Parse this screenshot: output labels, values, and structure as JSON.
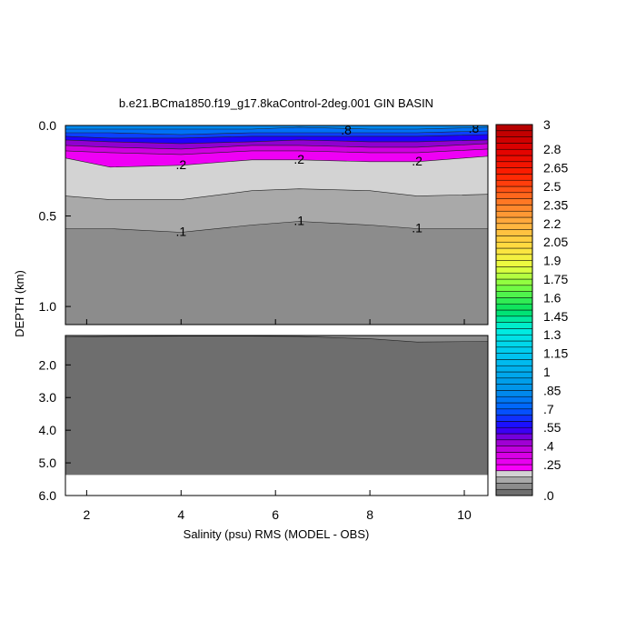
{
  "chart_data": {
    "type": "contour",
    "title": "b.e21.BCma1850.f19_g17.8kaControl-2deg.001 GIN BASIN",
    "xlabel": "Salinity (psu) RMS (MODEL - OBS)",
    "ylabel": "DEPTH (km)",
    "xlim": [
      1.55,
      10.5
    ],
    "xticks": [
      2,
      4,
      6,
      8,
      10
    ],
    "panels": [
      {
        "ylim": [
          0,
          1.1
        ],
        "yticks": [
          {
            "value": 0,
            "label": "0.0"
          },
          {
            "value": 0.5,
            "label": "0.5"
          },
          {
            "value": 1,
            "label": "1.0"
          }
        ]
      },
      {
        "ylim": [
          1.1,
          6
        ],
        "yticks": [
          {
            "value": 2,
            "label": "2.0"
          },
          {
            "value": 3,
            "label": "3.0"
          },
          {
            "value": 4,
            "label": "4.0"
          },
          {
            "value": 5,
            "label": "5.0"
          },
          {
            "value": 6,
            "label": "6.0"
          }
        ]
      }
    ],
    "bottom_depth": 5.37,
    "x": [
      1.55,
      2.5,
      4,
      5.5,
      6.5,
      8,
      9,
      10.5
    ],
    "contours": [
      {
        "level": 0.05,
        "depth": [
          1.15,
          1.13,
          1.12,
          1.12,
          1.13,
          1.2,
          1.3,
          1.28
        ]
      },
      {
        "level": 0.1,
        "depth": [
          0.57,
          0.57,
          0.59,
          0.55,
          0.53,
          0.55,
          0.57,
          0.57
        ]
      },
      {
        "level": 0.15,
        "depth": [
          0.39,
          0.41,
          0.41,
          0.36,
          0.35,
          0.36,
          0.39,
          0.38
        ]
      },
      {
        "level": 0.2,
        "depth": [
          0.18,
          0.23,
          0.22,
          0.19,
          0.19,
          0.2,
          0.2,
          0.17
        ]
      },
      {
        "level": 0.3,
        "depth": [
          0.14,
          0.15,
          0.16,
          0.14,
          0.14,
          0.15,
          0.15,
          0.13
        ]
      },
      {
        "level": 0.4,
        "depth": [
          0.11,
          0.12,
          0.13,
          0.11,
          0.11,
          0.12,
          0.12,
          0.1
        ]
      },
      {
        "level": 0.5,
        "depth": [
          0.08,
          0.09,
          0.1,
          0.09,
          0.08,
          0.09,
          0.09,
          0.08
        ]
      },
      {
        "level": 0.6,
        "depth": [
          0.06,
          0.07,
          0.07,
          0.06,
          0.06,
          0.06,
          0.06,
          0.05
        ]
      },
      {
        "level": 0.7,
        "depth": [
          0.04,
          0.04,
          0.05,
          0.04,
          0.04,
          0.04,
          0.04,
          0.03
        ]
      },
      {
        "level": 0.8,
        "depth": [
          0.02,
          0.02,
          0.02,
          0.02,
          0.01,
          0.02,
          0.02,
          0.01
        ]
      }
    ],
    "contour_labels": [
      {
        "x": 4,
        "depth": 0.59,
        "value": 0.1,
        "label": ".1"
      },
      {
        "x": 6.5,
        "depth": 0.53,
        "value": 0.1,
        "label": ".1"
      },
      {
        "x": 9,
        "depth": 0.57,
        "value": 0.1,
        "label": ".1"
      },
      {
        "x": 4,
        "depth": 0.22,
        "value": 0.2,
        "label": ".2"
      },
      {
        "x": 6.5,
        "depth": 0.19,
        "value": 0.2,
        "label": ".2"
      },
      {
        "x": 9,
        "depth": 0.2,
        "value": 0.2,
        "label": ".2"
      },
      {
        "x": 7.5,
        "depth": 0.03,
        "value": 0.8,
        "label": ".8"
      },
      {
        "x": 10.2,
        "depth": 0.02,
        "value": 0.8,
        "label": ".8"
      }
    ],
    "clim": [
      0,
      3
    ],
    "colorbar_labels": [
      3,
      2.8,
      2.65,
      2.5,
      2.35,
      2.2,
      2.05,
      1.9,
      1.75,
      1.6,
      1.45,
      1.3,
      1.15,
      1,
      {
        "value": 0.85,
        "label": ".85"
      },
      {
        "value": 0.7,
        "label": ".7"
      },
      {
        "value": 0.55,
        "label": ".55"
      },
      {
        "value": 0.4,
        "label": ".4"
      },
      {
        "value": 0.25,
        "label": ".25"
      },
      {
        "value": 0,
        "label": ".0"
      }
    ]
  }
}
